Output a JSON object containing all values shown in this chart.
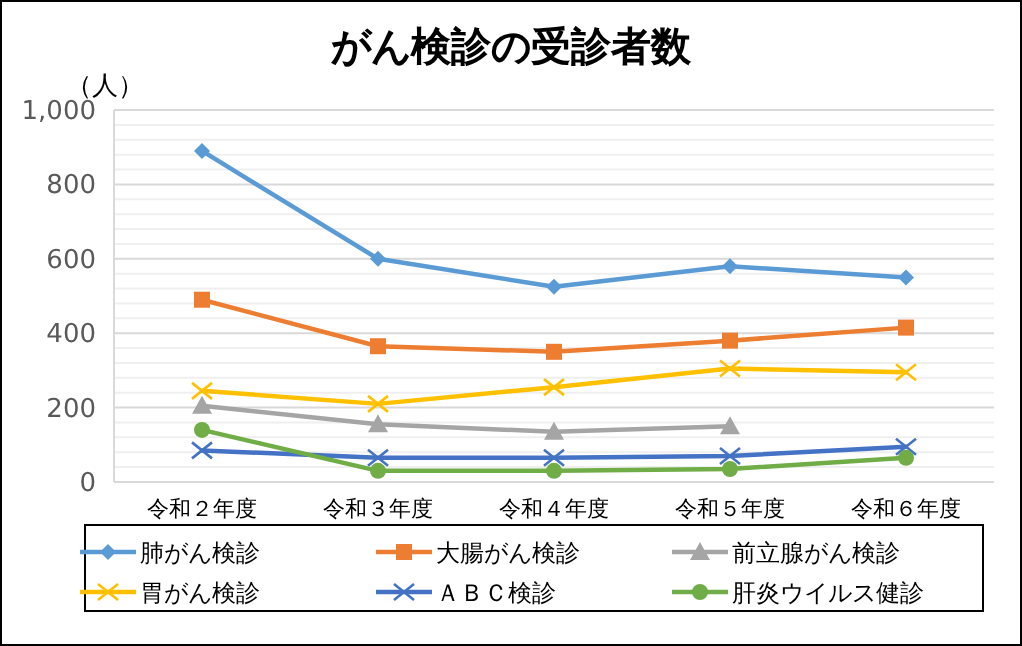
{
  "chart_data": {
    "type": "line",
    "title": "がん検診の受診者数",
    "ylabel": "（人）",
    "categories": [
      "令和２年度",
      "令和３年度",
      "令和４年度",
      "令和５年度",
      "令和６年度"
    ],
    "ylim": [
      0,
      1000
    ],
    "yticks": [
      {
        "value": 0,
        "label": "0"
      },
      {
        "value": 200,
        "label": "200"
      },
      {
        "value": 400,
        "label": "400"
      },
      {
        "value": 600,
        "label": "600"
      },
      {
        "value": 800,
        "label": "800"
      },
      {
        "value": 1000,
        "label": "1,000"
      }
    ],
    "grid": "y",
    "legend": "bottom",
    "series": [
      {
        "name": "肺がん検診",
        "color": "#5b9bd5",
        "marker": "diamond",
        "values": [
          890,
          600,
          525,
          580,
          550
        ]
      },
      {
        "name": "大腸がん検診",
        "color": "#ed7d31",
        "marker": "square",
        "values": [
          490,
          365,
          350,
          380,
          415
        ]
      },
      {
        "name": "前立腺がん検診",
        "color": "#a5a5a5",
        "marker": "triangle",
        "values": [
          205,
          155,
          135,
          150,
          null
        ]
      },
      {
        "name": "胃がん検診",
        "color": "#ffc000",
        "marker": "cross",
        "values": [
          245,
          210,
          255,
          305,
          295
        ]
      },
      {
        "name": "ＡＢＣ検診",
        "color": "#4472c4",
        "marker": "cross",
        "values": [
          85,
          65,
          65,
          70,
          95
        ]
      },
      {
        "name": "肝炎ウイルス健診",
        "color": "#70ad47",
        "marker": "circle",
        "values": [
          140,
          30,
          30,
          35,
          65
        ]
      }
    ]
  }
}
